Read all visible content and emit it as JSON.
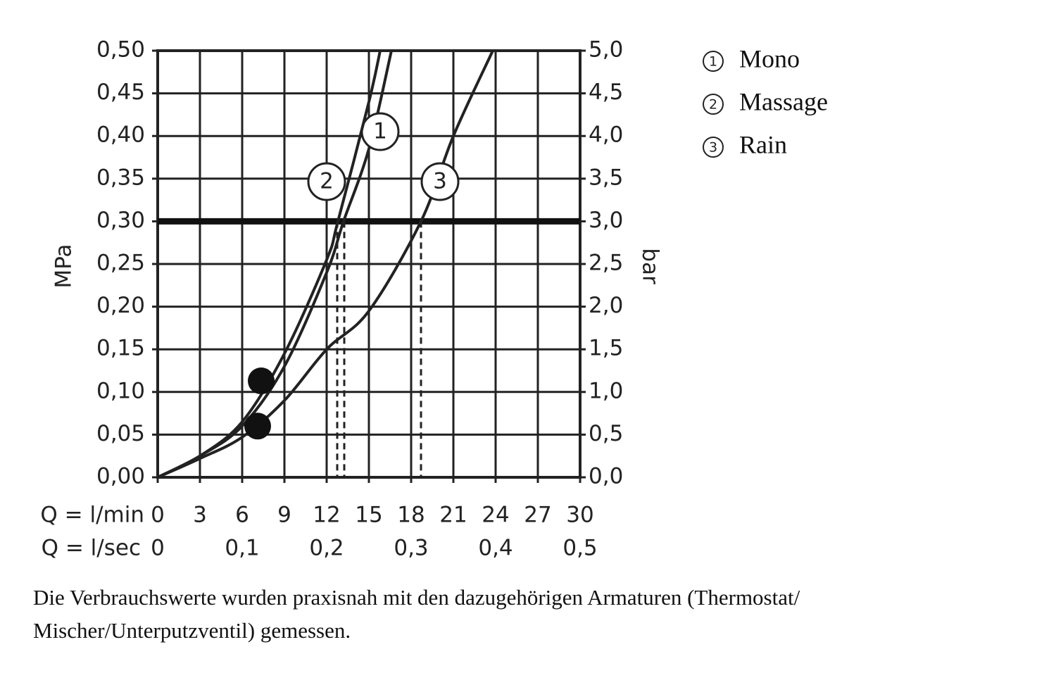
{
  "chart_data": {
    "type": "line",
    "ylabel": "MPa",
    "y2label": "bar",
    "xlabel": "Q = l/min",
    "x2label": "Q = l/sec",
    "xlim": [
      0,
      30
    ],
    "xticks": [
      0,
      3,
      6,
      9,
      12,
      15,
      18,
      21,
      24,
      27,
      30
    ],
    "x2ticks": [
      0,
      {
        "value": 6,
        "label": "0,1"
      },
      {
        "value": 12,
        "label": "0,2"
      },
      {
        "value": 18,
        "label": "0,3"
      },
      {
        "value": 24,
        "label": "0,4"
      },
      {
        "value": 30,
        "label": "0,5"
      }
    ],
    "ylim": [
      0,
      0.5
    ],
    "yticks": [
      {
        "value": 0,
        "label": "0,00"
      },
      {
        "value": 0.05,
        "label": "0,05"
      },
      {
        "value": 0.1,
        "label": "0,10"
      },
      {
        "value": 0.15,
        "label": "0,15"
      },
      {
        "value": 0.2,
        "label": "0,20"
      },
      {
        "value": 0.25,
        "label": "0,25"
      },
      {
        "value": 0.3,
        "label": "0,30"
      },
      {
        "value": 0.35,
        "label": "0,35"
      },
      {
        "value": 0.4,
        "label": "0,40"
      },
      {
        "value": 0.45,
        "label": "0,45"
      },
      {
        "value": 0.5,
        "label": "0,50"
      }
    ],
    "y2lim": [
      0,
      5
    ],
    "y2ticks": [
      {
        "value": 0,
        "label": "0,0"
      },
      {
        "value": 0.5,
        "label": "0,5"
      },
      {
        "value": 1,
        "label": "1,0"
      },
      {
        "value": 1.5,
        "label": "1,5"
      },
      {
        "value": 2,
        "label": "2,0"
      },
      {
        "value": 2.5,
        "label": "2,5"
      },
      {
        "value": 3,
        "label": "3,0"
      },
      {
        "value": 3.5,
        "label": "3,5"
      },
      {
        "value": 4,
        "label": "4,0"
      },
      {
        "value": 4.5,
        "label": "4,5"
      },
      {
        "value": 5,
        "label": "5,0"
      }
    ],
    "grid": true,
    "reference_line": 0.3,
    "droplines": [
      12.75,
      13.25,
      18.7
    ],
    "series": [
      {
        "name": "Mono",
        "label": "1",
        "color": "#222222",
        "x": [
          0,
          3,
          6,
          9,
          12,
          13.2,
          15,
          16.6
        ],
        "values": [
          0,
          0.025,
          0.06,
          0.13,
          0.24,
          0.3,
          0.385,
          0.5
        ]
      },
      {
        "name": "Massage",
        "label": "2",
        "color": "#222222",
        "x": [
          0,
          3,
          6,
          9,
          12,
          12.8,
          15,
          15.8
        ],
        "values": [
          0,
          0.025,
          0.065,
          0.145,
          0.255,
          0.3,
          0.44,
          0.5
        ]
      },
      {
        "name": "Rain",
        "label": "3",
        "color": "#222222",
        "x": [
          0,
          3,
          6,
          9,
          12,
          15,
          18.7,
          21,
          23.8
        ],
        "values": [
          0,
          0.022,
          0.047,
          0.09,
          0.15,
          0.195,
          0.3,
          0.4,
          0.5
        ]
      }
    ],
    "markers": [
      {
        "x": 7.35,
        "y": 0.113
      },
      {
        "x": 7.1,
        "y": 0.06
      }
    ],
    "footnote": [
      "Die Verbrauchswerte wurden praxisnah mit den dazugehörigen Armaturen (Thermostat/",
      "Mischer/Unterputzventil) gemessen."
    ]
  }
}
